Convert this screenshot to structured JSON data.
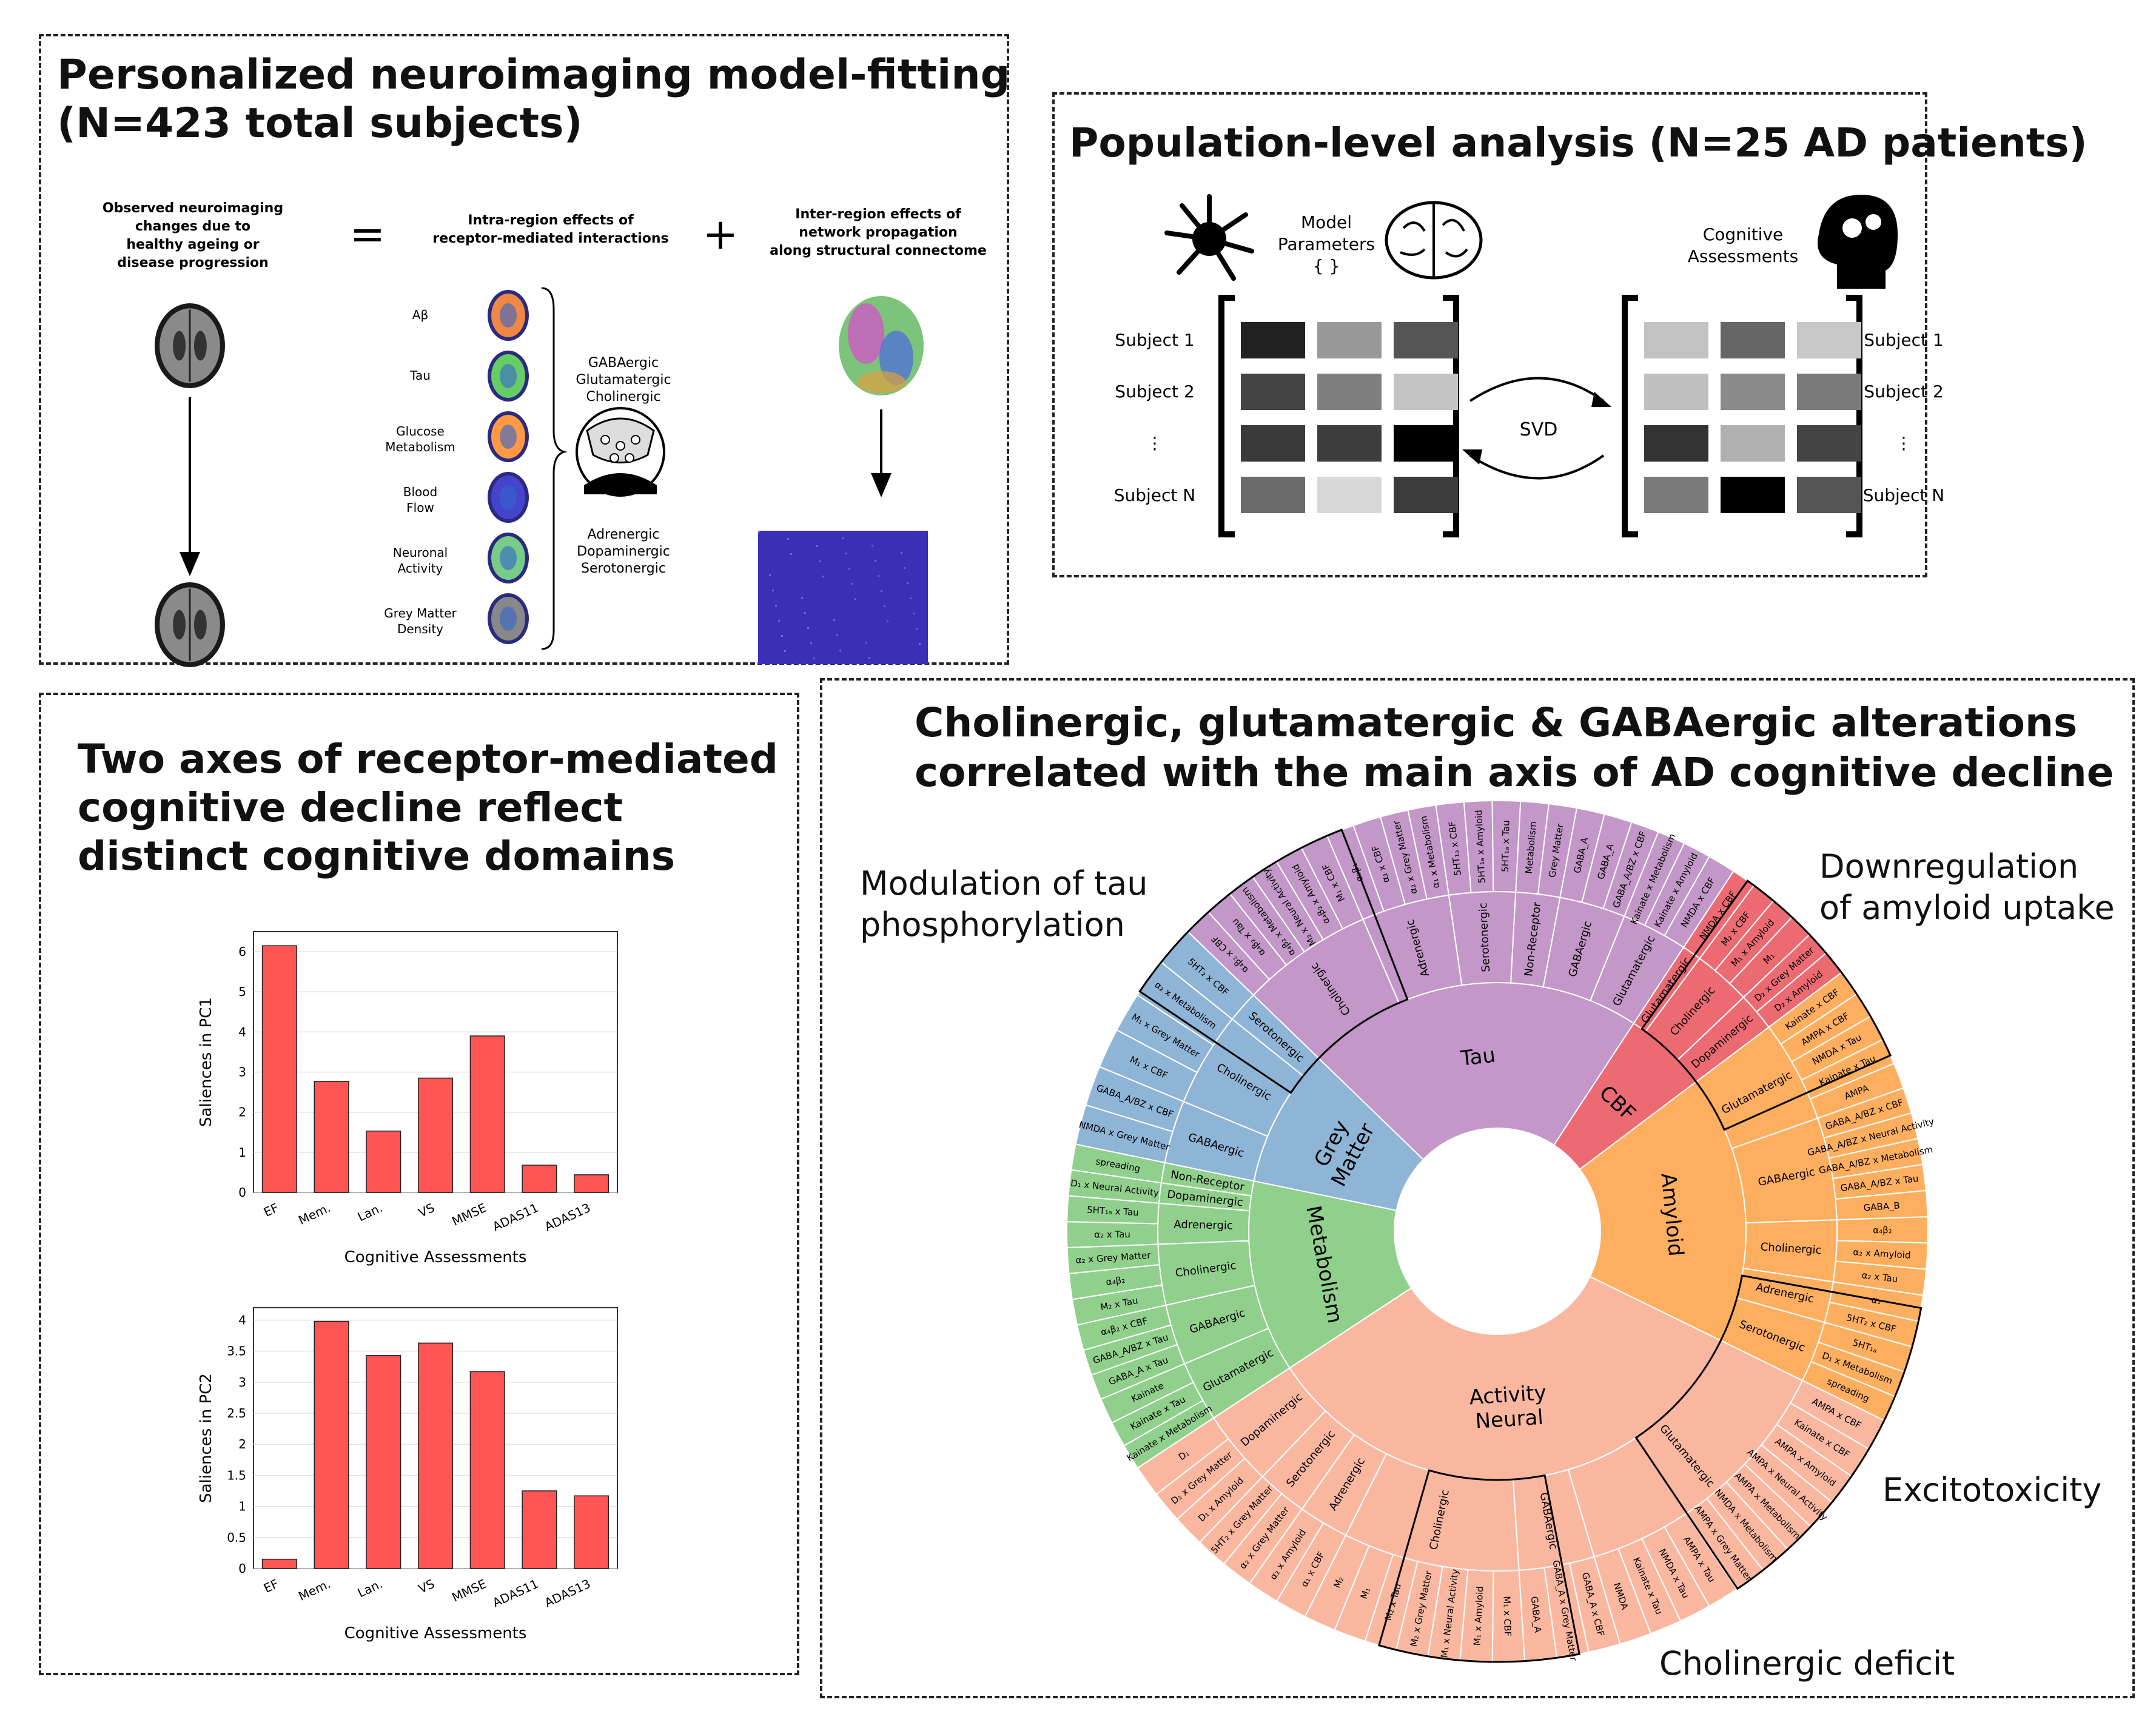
{
  "panel_a": {
    "title_line1": "Personalized neuroimaging model-fitting",
    "title_line2": "(N=423 total subjects)",
    "observed_label": [
      "Observed neuroimaging",
      "changes due to",
      "healthy ageing or",
      "disease progression"
    ],
    "equals": "=",
    "plus": "+",
    "intra_label": [
      "Intra-region effects of",
      "receptor-mediated interactions"
    ],
    "inter_label": [
      "Inter-region effects of",
      "network propagation",
      "along structural connectome"
    ],
    "modalities": [
      "Aβ",
      "Tau",
      "Glucose|Metabolism",
      "Blood|Flow",
      "Neuronal|Activity",
      "Grey Matter|Density"
    ],
    "receptors_top": [
      "GABAergic",
      "Glutamatergic",
      "Cholinergic"
    ],
    "receptors_bottom": [
      "Adrenergic",
      "Dopaminergic",
      "Serotonergic"
    ]
  },
  "panel_b": {
    "title": "Population-level analysis (N=25 AD patients)",
    "model_params": [
      "Model",
      "Parameters",
      "{ }"
    ],
    "cognitive": [
      "Cognitive",
      "Assessments"
    ],
    "rows_left": [
      "Subject 1",
      "Subject 2",
      "⋮",
      "Subject N"
    ],
    "rows_right": [
      "Subject 1",
      "Subject 2",
      "⋮",
      "Subject N"
    ],
    "svd": "SVD",
    "left_matrix": [
      [
        "#222222",
        "#999999",
        "#555555"
      ],
      [
        "#444444",
        "#7f7f7f",
        "#c4c4c4"
      ],
      [
        "#3a3a3a",
        "#3e3e3e",
        "#000000"
      ],
      [
        "#6b6b6b",
        "#d8d8d8",
        "#3c3c3c"
      ]
    ],
    "right_matrix": [
      [
        "#c2c2c2",
        "#666666",
        "#c8c8c8"
      ],
      [
        "#c0c0c0",
        "#8a8a8a",
        "#7a7a7a"
      ],
      [
        "#333333",
        "#b0b0b0",
        "#444444"
      ],
      [
        "#7a7a7a",
        "#000000",
        "#555555"
      ]
    ]
  },
  "panel_c": {
    "title": [
      "Two axes of receptor-mediated",
      "cognitive decline reflect",
      "distinct cognitive domains"
    ],
    "bar_color": "#ff5555"
  },
  "panel_d": {
    "title": [
      "Cholinergic, glutamatergic & GABAergic alterations",
      "correlated with the main axis of AD cognitive decline"
    ],
    "callouts": {
      "tau": [
        "Modulation of tau",
        "phosphorylation"
      ],
      "amyloid": [
        "Downregulation",
        "of amyloid uptake"
      ],
      "excito": "Excitotoxicity",
      "chol": "Cholinergic deficit"
    },
    "colors": {
      "tau": "#c397c7",
      "cbf": "#ec6b73",
      "amyloid": "#fdae5f",
      "neural": "#f9b7a0",
      "metabolism": "#90d08c",
      "grey": "#8fb5d6"
    },
    "sunburst": [
      {
        "name": "Tau",
        "color": "#c397c7",
        "children": [
          {
            "name": "Cholinergic",
            "children": [
              "α₄β₂ x CBF",
              "α₄β₂ x Tau",
              "α₄β₂ x Metabolism",
              "M₂ x Neural Activity",
              "α₄β₂ x Amyloid",
              "M₁ x CBF"
            ]
          },
          {
            "name": "Adrenergic",
            "children": [
              "α₂β₁",
              "α₂ x CBF",
              "α₂ x Grey Matter",
              "α₁ x Metabolism"
            ]
          },
          {
            "name": "Serotonergic",
            "children": [
              "5HT₁ₐ x CBF",
              "5HT₁ₐ x Amyloid",
              "5HT₁ₐ x Tau"
            ]
          },
          {
            "name": "Non-Receptor",
            "children": [
              "Metabolism",
              "Grey Matter"
            ]
          },
          {
            "name": "GABAergic",
            "children": [
              "GABA_A",
              "GABA_A",
              "GABA_A/BZ x CBF"
            ]
          },
          {
            "name": "Glutamatergic",
            "children": [
              "Kainate x Metabolism",
              "Kainate x Amyloid",
              "NMDA x CBF"
            ]
          }
        ]
      },
      {
        "name": "CBF",
        "color": "#ec6b73",
        "children": [
          {
            "name": "Glutamatergic",
            "children": [
              "NMDA x CBF"
            ]
          },
          {
            "name": "Cholinergic",
            "children": [
              "M₂ x CBF",
              "M₁ x Amyloid",
              "M₁"
            ]
          },
          {
            "name": "Dopaminergic",
            "children": [
              "D₂ x Grey Matter",
              "D₂ x Amyloid"
            ]
          }
        ]
      },
      {
        "name": "Amyloid",
        "color": "#fdae5f",
        "children": [
          {
            "name": "Glutamatergic",
            "children": [
              "Kainate x CBF",
              "AMPA x CBF",
              "NMDA x Tau",
              "Kainate x Tau",
              "AMPA"
            ]
          },
          {
            "name": "GABAergic",
            "children": [
              "GABA_A/BZ x CBF",
              "GABA_A/BZ x Neural Activity",
              "GABA_A/BZ x Metabolism",
              "GABA_A/BZ x Tau",
              "GABA_B"
            ]
          },
          {
            "name": "Cholinergic",
            "children": [
              "α₄β₂",
              "α₂ x Amyloid",
              "α₂ x Tau"
            ]
          },
          {
            "name": "Adrenergic",
            "children": [
              "α₁",
              "5HT₂ x CBF"
            ]
          },
          {
            "name": "Serotonergic",
            "children": [
              "5HT₁ₐ",
              "D₁ x Metabolism",
              "spreading"
            ]
          }
        ]
      },
      {
        "name": "Neural Activity",
        "color": "#f9b7a0",
        "children": [
          {
            "name": "Glutamatergic",
            "children": [
              "AMPA x CBF",
              "Kainate x CBF",
              "AMPA x Amyloid",
              "AMPA x Neural Activity",
              "AMPA x Metabolism",
              "NMDA x Metabolism",
              "AMPA x Grey Matter",
              "AMPA x Tau",
              "NMDA x Tau",
              "Kainate x Tau",
              "NMDA"
            ]
          },
          {
            "name": "GABAergic",
            "children": [
              "GABA_A x CBF",
              "GABA_A x Grey Matter",
              "GABA_A"
            ]
          },
          {
            "name": "Cholinergic",
            "children": [
              "M₁ x CBF",
              "M₁ x Amyloid",
              "M₁ x Neural Activity",
              "M₂ x Grey Matter",
              "M₂ x Tau",
              "M₁",
              "M₂"
            ]
          },
          {
            "name": "Adrenergic",
            "children": [
              "α₁ x CBF",
              "α₂ x Amyloid"
            ]
          },
          {
            "name": "Serotonergic",
            "children": [
              "α₂ x Grey Matter",
              "5HT₂ x Grey Matter"
            ]
          },
          {
            "name": "Dopaminergic",
            "children": [
              "D₁ x Amyloid",
              "D₂ x Grey Matter",
              "D₁"
            ]
          }
        ]
      },
      {
        "name": "Metabolism",
        "color": "#90d08c",
        "children": [
          {
            "name": "Glutamatergic",
            "children": [
              "Kainate x Metabolism",
              "Kainate x Tau",
              "Kainate"
            ]
          },
          {
            "name": "GABAergic",
            "children": [
              "GABA_A x Tau",
              "GABA_A/BZ x Tau",
              "α₄β₂ x CBF"
            ]
          },
          {
            "name": "Cholinergic",
            "children": [
              "M₂ x Tau",
              "α₄β₂",
              "α₂ x Grey Matter"
            ]
          },
          {
            "name": "Adrenergic",
            "children": [
              "α₂ x Tau",
              "5HT₁ₐ x Tau"
            ]
          },
          {
            "name": "Dopaminergic",
            "children": [
              "D₁ x Neural Activity"
            ]
          },
          {
            "name": "Non-Receptor",
            "children": [
              "spreading"
            ]
          }
        ]
      },
      {
        "name": "Grey Matter",
        "color": "#8fb5d6",
        "children": [
          {
            "name": "GABAergic",
            "children": [
              "NMDA x Grey Matter",
              "GABA_A/BZ x CBF"
            ]
          },
          {
            "name": "Cholinergic",
            "children": [
              "M₁ x CBF",
              "M₁ x Grey Matter",
              "α₂ x Metabolism"
            ]
          },
          {
            "name": "Serotonergic",
            "children": [
              "5HT₂ x CBF"
            ]
          }
        ]
      }
    ]
  },
  "chart_data": [
    {
      "type": "bar",
      "categories": [
        "EF",
        "Mem.",
        "Lan.",
        "VS",
        "MMSE",
        "ADAS11",
        "ADAS13"
      ],
      "values": [
        6.15,
        2.77,
        1.53,
        2.85,
        3.9,
        0.68,
        0.44
      ],
      "xlabel": "Cognitive Assessments",
      "ylabel": "Saliences in PC1",
      "ylim": [
        0,
        6.5
      ],
      "yticks": [
        0,
        1,
        2,
        3,
        4,
        5,
        6
      ]
    },
    {
      "type": "bar",
      "categories": [
        "EF",
        "Mem.",
        "Lan.",
        "VS",
        "MMSE",
        "ADAS11",
        "ADAS13"
      ],
      "values": [
        0.15,
        3.98,
        3.43,
        3.63,
        3.17,
        1.25,
        1.17
      ],
      "xlabel": "Cognitive Assessments",
      "ylabel": "Saliences in PC2",
      "ylim": [
        0,
        4.2
      ],
      "yticks": [
        0,
        0.5,
        1,
        1.5,
        2,
        2.5,
        3,
        3.5,
        4
      ]
    }
  ]
}
